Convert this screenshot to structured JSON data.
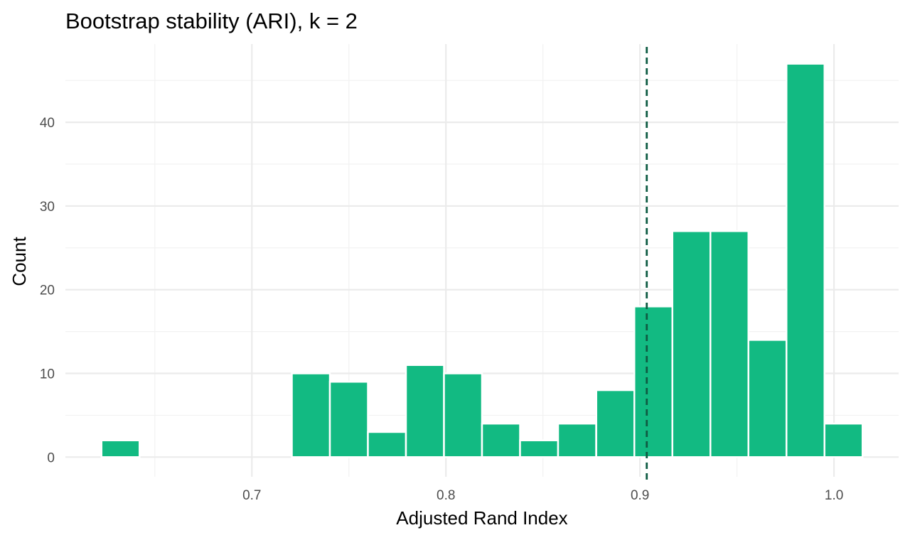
{
  "chart_data": {
    "type": "bar",
    "title": "Bootstrap stability (ARI), k = 2",
    "xlabel": "Adjusted Rand Index",
    "ylabel": "Count",
    "bin_width": 0.0196,
    "bins": [
      {
        "x_start": 0.6225,
        "count": 2
      },
      {
        "x_start": 0.7206,
        "count": 10
      },
      {
        "x_start": 0.7402,
        "count": 9
      },
      {
        "x_start": 0.7598,
        "count": 3
      },
      {
        "x_start": 0.7794,
        "count": 11
      },
      {
        "x_start": 0.799,
        "count": 10
      },
      {
        "x_start": 0.8186,
        "count": 4
      },
      {
        "x_start": 0.8382,
        "count": 2
      },
      {
        "x_start": 0.8578,
        "count": 4
      },
      {
        "x_start": 0.8775,
        "count": 8
      },
      {
        "x_start": 0.8971,
        "count": 18
      },
      {
        "x_start": 0.9167,
        "count": 27
      },
      {
        "x_start": 0.9363,
        "count": 27
      },
      {
        "x_start": 0.9559,
        "count": 14
      },
      {
        "x_start": 0.9755,
        "count": 47
      },
      {
        "x_start": 0.9951,
        "count": 4
      }
    ],
    "reference_line": {
      "x": 0.9035,
      "style": "dashed"
    },
    "xlim": [
      0.6039,
      1.0333
    ],
    "ylim": [
      -2.35,
      49.35
    ],
    "x_ticks": [
      0.7,
      0.8,
      0.9,
      1.0
    ],
    "x_tick_labels": [
      "0.7",
      "0.8",
      "0.9",
      "1.0"
    ],
    "x_minor_ticks": [
      0.65,
      0.75,
      0.85,
      0.95
    ],
    "y_ticks": [
      0,
      10,
      20,
      30,
      40
    ],
    "y_tick_labels": [
      "0",
      "10",
      "20",
      "30",
      "40"
    ],
    "y_minor_ticks": [
      5,
      15,
      25,
      35,
      45
    ],
    "grid": true,
    "legend": "none",
    "colors": {
      "bar_fill": "#12ba82",
      "reference_line": "#0f5c43"
    }
  }
}
